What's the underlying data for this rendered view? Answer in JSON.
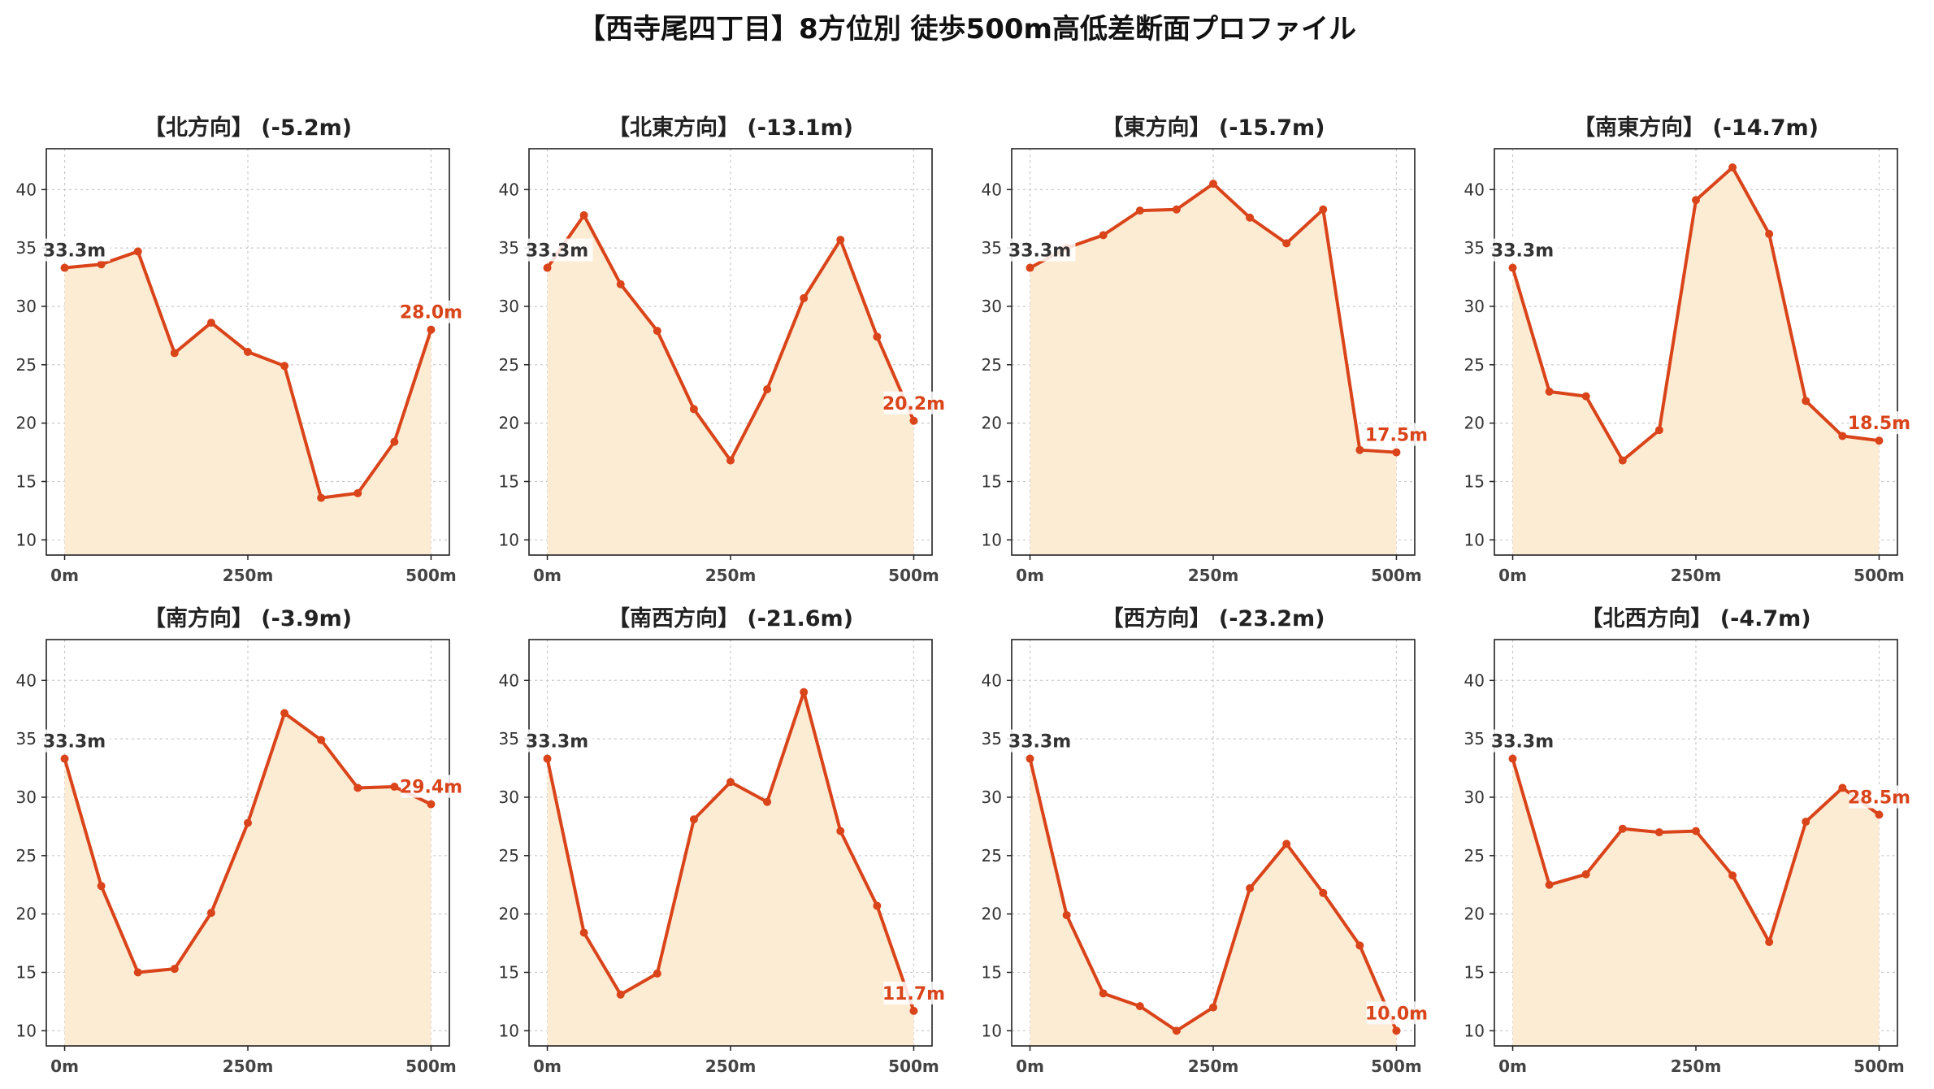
{
  "suptitle": "【西寺尾四丁目】8方位別 徒歩500m高低差断面プロファイル",
  "colors": {
    "line": "#d9441a",
    "fill": "#fdecd4",
    "grid": "#c8c8c8",
    "axis": "#222222"
  },
  "chart_data": [
    {
      "type": "area",
      "title": "【北方向】 (-5.2m)",
      "x": [
        0,
        50,
        100,
        150,
        200,
        250,
        300,
        350,
        400,
        450,
        500
      ],
      "y": [
        33.3,
        33.6,
        34.7,
        26.0,
        28.6,
        26.1,
        24.9,
        13.6,
        14.0,
        18.4,
        28.0
      ],
      "start_label": "33.3m",
      "end_label": "28.0m",
      "xticks": [
        "0m",
        "250m",
        "500m"
      ],
      "yticks": [
        10,
        15,
        20,
        25,
        30,
        35,
        40
      ],
      "ylim": [
        8.7,
        43.5
      ]
    },
    {
      "type": "area",
      "title": "【北東方向】 (-13.1m)",
      "x": [
        0,
        50,
        100,
        150,
        200,
        250,
        300,
        350,
        400,
        450,
        500
      ],
      "y": [
        33.3,
        37.8,
        31.9,
        27.9,
        21.2,
        16.8,
        22.9,
        30.7,
        35.7,
        27.4,
        20.2
      ],
      "start_label": "33.3m",
      "end_label": "20.2m",
      "xticks": [
        "0m",
        "250m",
        "500m"
      ],
      "yticks": [
        10,
        15,
        20,
        25,
        30,
        35,
        40
      ],
      "ylim": [
        8.7,
        43.5
      ]
    },
    {
      "type": "area",
      "title": "【東方向】 (-15.7m)",
      "x": [
        0,
        50,
        100,
        150,
        200,
        250,
        300,
        350,
        400,
        450,
        500
      ],
      "y": [
        33.3,
        35.0,
        36.1,
        38.2,
        38.3,
        40.5,
        37.6,
        35.4,
        38.3,
        17.7,
        17.5
      ],
      "start_label": "33.3m",
      "end_label": "17.5m",
      "xticks": [
        "0m",
        "250m",
        "500m"
      ],
      "yticks": [
        10,
        15,
        20,
        25,
        30,
        35,
        40
      ],
      "ylim": [
        8.7,
        43.5
      ]
    },
    {
      "type": "area",
      "title": "【南東方向】 (-14.7m)",
      "x": [
        0,
        50,
        100,
        150,
        200,
        250,
        300,
        350,
        400,
        450,
        500
      ],
      "y": [
        33.3,
        22.7,
        22.3,
        16.8,
        19.4,
        39.1,
        41.9,
        36.2,
        21.9,
        18.9,
        18.5
      ],
      "start_label": "33.3m",
      "end_label": "18.5m",
      "xticks": [
        "0m",
        "250m",
        "500m"
      ],
      "yticks": [
        10,
        15,
        20,
        25,
        30,
        35,
        40
      ],
      "ylim": [
        8.7,
        43.5
      ]
    },
    {
      "type": "area",
      "title": "【南方向】 (-3.9m)",
      "x": [
        0,
        50,
        100,
        150,
        200,
        250,
        300,
        350,
        400,
        450,
        500
      ],
      "y": [
        33.3,
        22.4,
        15.0,
        15.3,
        20.1,
        27.8,
        37.2,
        34.9,
        30.8,
        30.9,
        29.4
      ],
      "start_label": "33.3m",
      "end_label": "29.4m",
      "xticks": [
        "0m",
        "250m",
        "500m"
      ],
      "yticks": [
        10,
        15,
        20,
        25,
        30,
        35,
        40
      ],
      "ylim": [
        8.7,
        43.5
      ]
    },
    {
      "type": "area",
      "title": "【南西方向】 (-21.6m)",
      "x": [
        0,
        50,
        100,
        150,
        200,
        250,
        300,
        350,
        400,
        450,
        500
      ],
      "y": [
        33.3,
        18.4,
        13.1,
        14.9,
        28.1,
        31.3,
        29.6,
        39.0,
        27.1,
        20.7,
        11.7
      ],
      "start_label": "33.3m",
      "end_label": "11.7m",
      "xticks": [
        "0m",
        "250m",
        "500m"
      ],
      "yticks": [
        10,
        15,
        20,
        25,
        30,
        35,
        40
      ],
      "ylim": [
        8.7,
        43.5
      ]
    },
    {
      "type": "area",
      "title": "【西方向】 (-23.2m)",
      "x": [
        0,
        50,
        100,
        150,
        200,
        250,
        300,
        350,
        400,
        450,
        500
      ],
      "y": [
        33.3,
        19.9,
        13.2,
        12.1,
        10.0,
        12.0,
        22.2,
        26.0,
        21.8,
        17.3,
        10.0
      ],
      "start_label": "33.3m",
      "end_label": "10.0m",
      "xticks": [
        "0m",
        "250m",
        "500m"
      ],
      "yticks": [
        10,
        15,
        20,
        25,
        30,
        35,
        40
      ],
      "ylim": [
        8.7,
        43.5
      ]
    },
    {
      "type": "area",
      "title": "【北西方向】 (-4.7m)",
      "x": [
        0,
        50,
        100,
        150,
        200,
        250,
        300,
        350,
        400,
        450,
        500
      ],
      "y": [
        33.3,
        22.5,
        23.4,
        27.3,
        27.0,
        27.1,
        23.3,
        17.6,
        27.9,
        30.8,
        28.5
      ],
      "start_label": "33.3m",
      "end_label": "28.5m",
      "xticks": [
        "0m",
        "250m",
        "500m"
      ],
      "yticks": [
        10,
        15,
        20,
        25,
        30,
        35,
        40
      ],
      "ylim": [
        8.7,
        43.5
      ]
    }
  ]
}
